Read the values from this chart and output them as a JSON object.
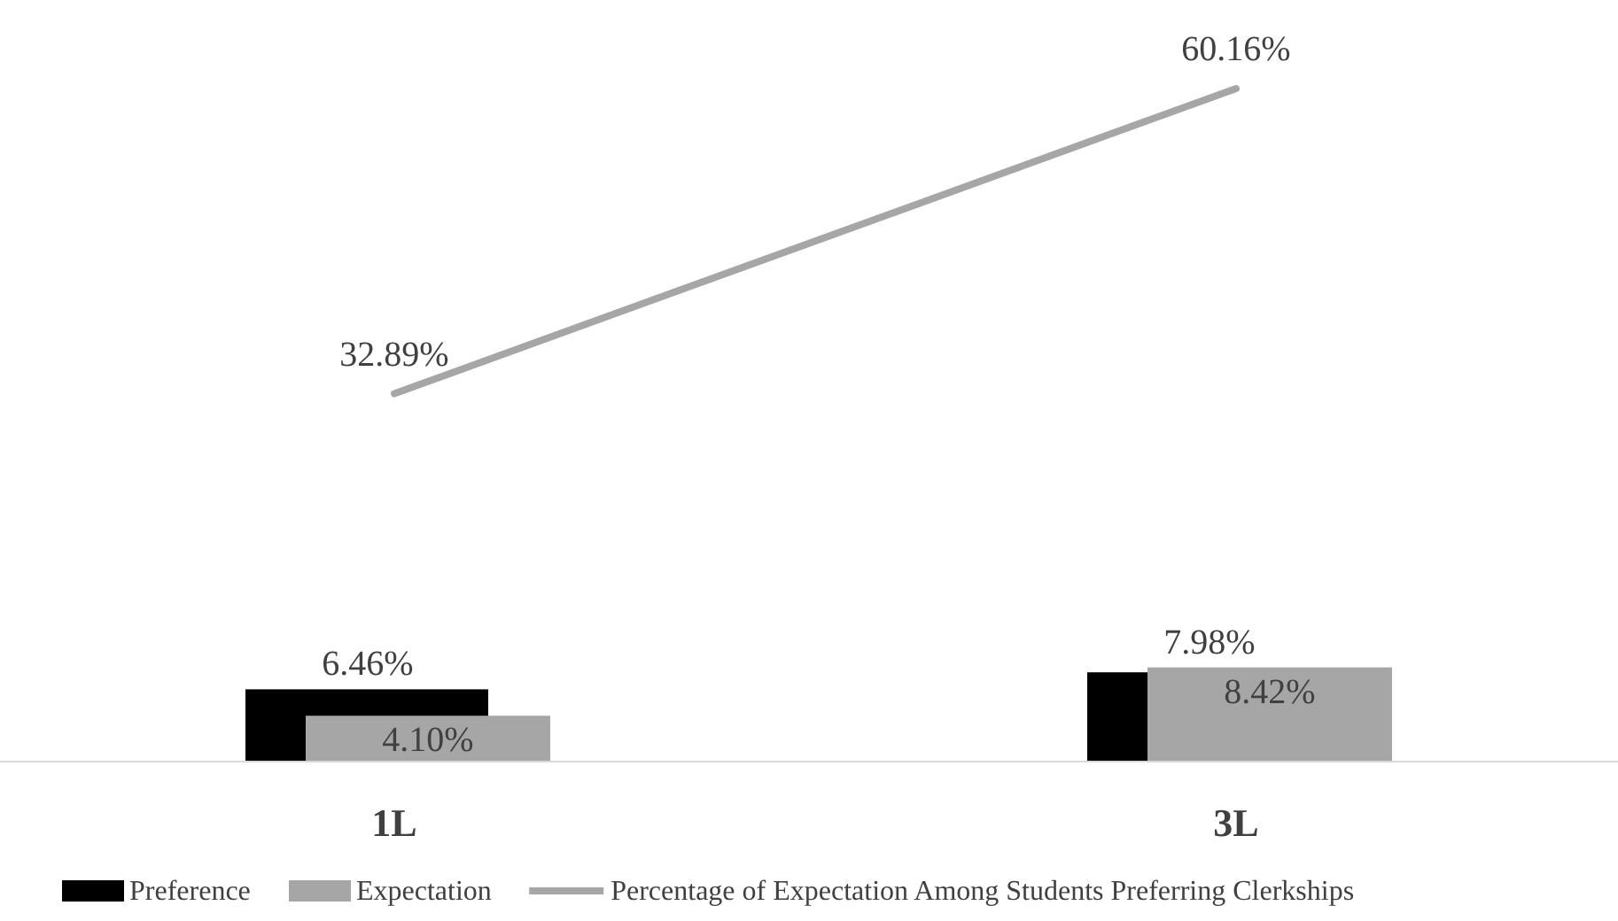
{
  "chart_data": {
    "type": "bar",
    "categories": [
      "1L",
      "3L"
    ],
    "series": [
      {
        "name": "Preference",
        "color": "#000000",
        "values": [
          6.46,
          7.98
        ],
        "value_labels": [
          "6.46%",
          "7.98%"
        ]
      },
      {
        "name": "Expectation",
        "color": "#a6a6a6",
        "values": [
          4.1,
          8.42
        ],
        "value_labels": [
          "4.10%",
          "8.42%"
        ]
      },
      {
        "name": "Percentage of Expectation Among Students Preferring Clerkships",
        "type": "line",
        "color": "#a6a6a6",
        "values": [
          32.89,
          60.16
        ],
        "value_labels": [
          "32.89%",
          "60.16%"
        ]
      }
    ],
    "legend": "bottom"
  }
}
